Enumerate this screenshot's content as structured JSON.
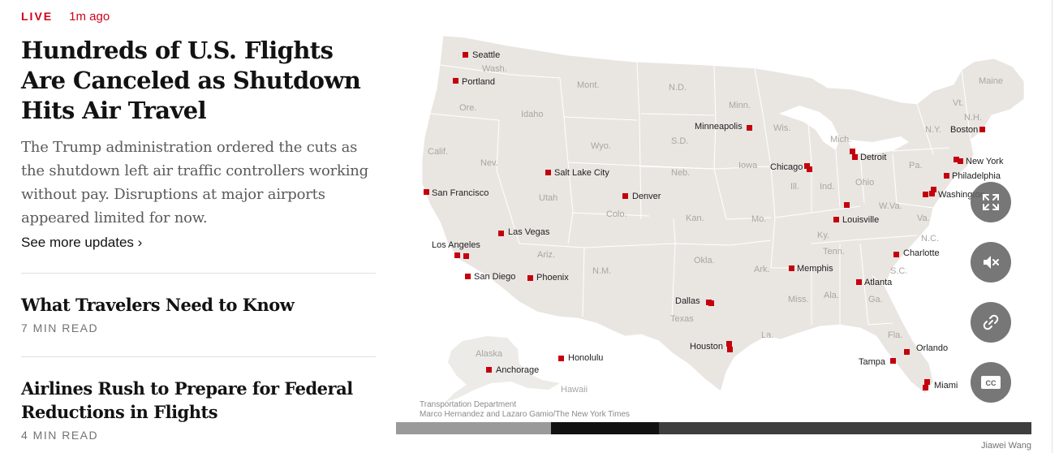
{
  "live_badge": "LIVE",
  "timestamp": "1m ago",
  "headline": "Hundreds of U.S. Flights Are Canceled as Shutdown Hits Air Travel",
  "summary": "The Trump administration ordered the cuts as the shutdown left air traffic controllers working without pay. Disruptions at major airports appeared limited for now.",
  "more_link": "See more updates ›",
  "stories": [
    {
      "title": "What Travelers Need to Know",
      "read_time": "7 MIN READ"
    },
    {
      "title": "Airlines Rush to Prepare for Federal Reductions in Flights",
      "read_time": "4 MIN READ"
    }
  ],
  "map": {
    "cities": [
      "Seattle",
      "Portland",
      "San Francisco",
      "Salt Lake City",
      "Denver",
      "Las Vegas",
      "Los Angeles",
      "San Diego",
      "Phoenix",
      "Minneapolis",
      "Chicago",
      "Detroit",
      "Boston",
      "New York",
      "Philadelphia",
      "Washington",
      "Louisville",
      "Charlotte",
      "Memphis",
      "Atlanta",
      "Dallas",
      "Houston",
      "Orlando",
      "Tampa",
      "Miami",
      "Honolulu",
      "Anchorage"
    ],
    "states": [
      "Wash.",
      "Ore.",
      "Calif.",
      "Nev.",
      "Idaho",
      "Mont.",
      "Wyo.",
      "Utah",
      "Colo.",
      "Ariz.",
      "N.M.",
      "N.D.",
      "S.D.",
      "Neb.",
      "Kan.",
      "Okla.",
      "Texas",
      "Minn.",
      "Iowa",
      "Mo.",
      "Ark.",
      "La.",
      "Wis.",
      "Ill.",
      "Mich.",
      "Ind.",
      "Ohio",
      "Ky.",
      "Tenn.",
      "Miss.",
      "Ala.",
      "Ga.",
      "Fla.",
      "S.C.",
      "N.C.",
      "Va.",
      "W.Va.",
      "Pa.",
      "N.Y.",
      "Vt.",
      "N.H.",
      "Maine",
      "Alaska",
      "Hawaii"
    ],
    "source": "Transportation Department",
    "byline": "Marco Hernandez and Lazaro Gamio/The New York Times"
  },
  "controls": [
    {
      "icon": "expand-icon"
    },
    {
      "icon": "mute-icon"
    },
    {
      "icon": "link-icon"
    },
    {
      "icon": "captions-icon",
      "label": "CC"
    }
  ],
  "photo_credit": "Jiawei Wang",
  "colors": {
    "live": "#d0021b",
    "marker": "#c4000e",
    "land": "#e9e6e2",
    "background": "#ffffff"
  }
}
